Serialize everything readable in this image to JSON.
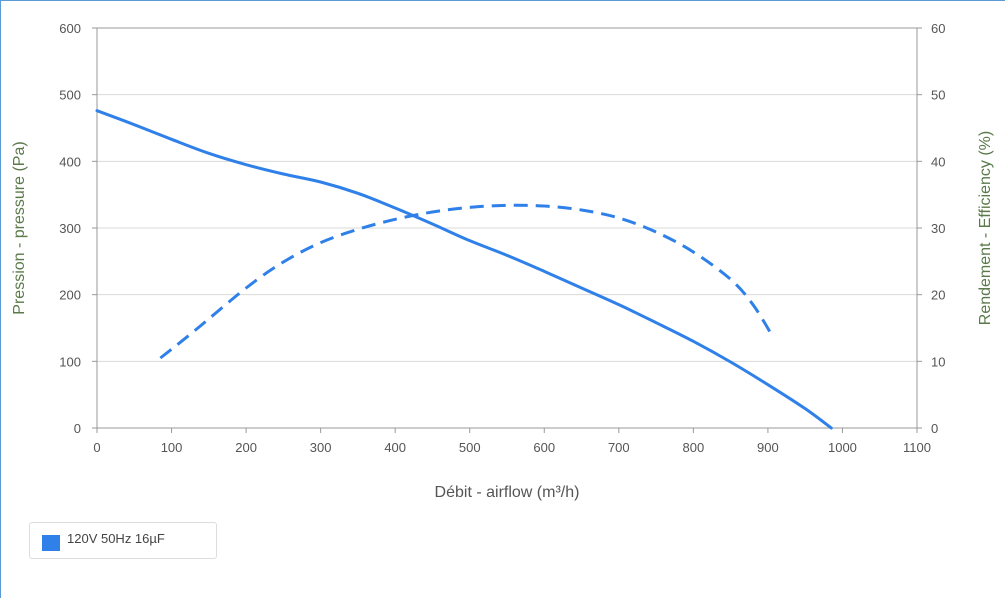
{
  "chart_data": {
    "type": "line",
    "xlabel": "Débit - airflow (m³/h)",
    "ylabel_left": "Pression - pressure (Pa)",
    "ylabel_right": "Rendement - Efficiency (%)",
    "xlim": [
      0,
      1100
    ],
    "x_ticks": [
      0,
      100,
      200,
      300,
      400,
      500,
      600,
      700,
      800,
      900,
      1000,
      1100
    ],
    "ylim_left": [
      0,
      600
    ],
    "y_ticks_left": [
      0,
      100,
      200,
      300,
      400,
      500,
      600
    ],
    "ylim_right": [
      0,
      60
    ],
    "y_ticks_right": [
      0,
      10,
      20,
      30,
      40,
      50,
      60
    ],
    "grid": "horizontal",
    "legend_position": "bottom-left",
    "series": [
      {
        "name": "120V 50Hz 16µF",
        "color": "#2f80e8",
        "pressure": {
          "axis": "left",
          "style": "solid",
          "points": [
            [
              0,
              476
            ],
            [
              50,
              455
            ],
            [
              100,
              433
            ],
            [
              150,
              412
            ],
            [
              200,
              395
            ],
            [
              250,
              381
            ],
            [
              300,
              369
            ],
            [
              350,
              352
            ],
            [
              400,
              330
            ],
            [
              450,
              306
            ],
            [
              500,
              281
            ],
            [
              550,
              259
            ],
            [
              600,
              235
            ],
            [
              650,
              210
            ],
            [
              700,
              185
            ],
            [
              750,
              158
            ],
            [
              800,
              130
            ],
            [
              850,
              99
            ],
            [
              900,
              65
            ],
            [
              950,
              29
            ],
            [
              985,
              0
            ]
          ]
        },
        "efficiency": {
          "axis": "right",
          "style": "dashed",
          "points": [
            [
              85,
              10.5
            ],
            [
              130,
              14.5
            ],
            [
              200,
              21
            ],
            [
              250,
              24.9
            ],
            [
              300,
              27.8
            ],
            [
              350,
              29.8
            ],
            [
              400,
              31.3
            ],
            [
              450,
              32.4
            ],
            [
              500,
              33.1
            ],
            [
              550,
              33.4
            ],
            [
              600,
              33.3
            ],
            [
              650,
              32.7
            ],
            [
              700,
              31.5
            ],
            [
              750,
              29.4
            ],
            [
              800,
              26.4
            ],
            [
              850,
              22.3
            ],
            [
              880,
              18.5
            ],
            [
              905,
              14
            ]
          ]
        }
      }
    ]
  }
}
